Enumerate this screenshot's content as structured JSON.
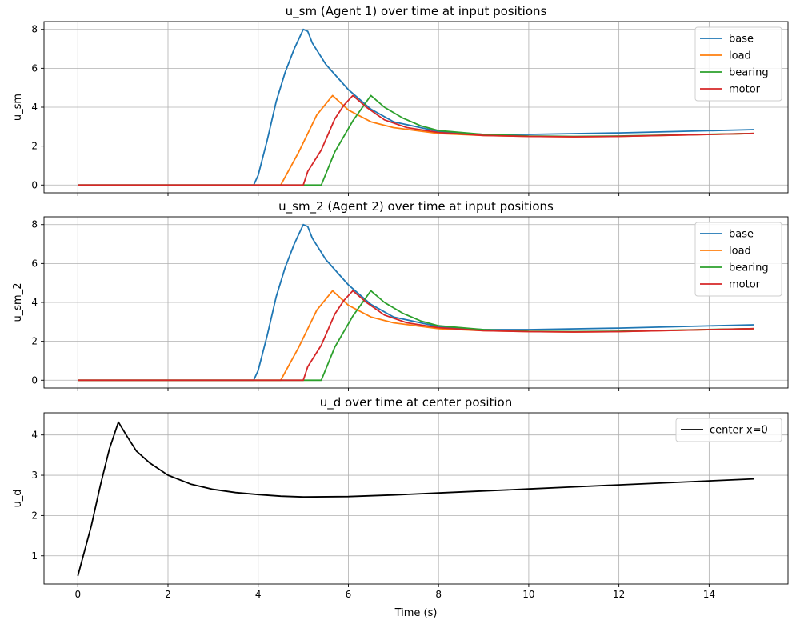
{
  "chart_data": [
    {
      "type": "line",
      "title": "u_sm (Agent 1) over time at input positions",
      "xlabel": "",
      "ylabel": "u_sm",
      "xlim": [
        -0.75,
        15.75
      ],
      "ylim": [
        -0.4,
        8.4
      ],
      "xticks": [
        0,
        2,
        4,
        6,
        8,
        10,
        12,
        14
      ],
      "yticks": [
        0,
        2,
        4,
        6,
        8
      ],
      "show_xtick_labels": false,
      "grid": true,
      "legend_position": "upper-right",
      "series": [
        {
          "name": "base",
          "color": "#1f77b4",
          "x": [
            0,
            3.9,
            4.0,
            4.2,
            4.4,
            4.6,
            4.8,
            5.0,
            5.1,
            5.2,
            5.5,
            6.0,
            6.5,
            7.0,
            8.0,
            9.0,
            10.0,
            12.0,
            15.0
          ],
          "y": [
            0,
            0,
            0.5,
            2.3,
            4.3,
            5.8,
            7.0,
            8.0,
            7.9,
            7.3,
            6.2,
            4.9,
            3.9,
            3.25,
            2.75,
            2.6,
            2.6,
            2.68,
            2.85
          ]
        },
        {
          "name": "load",
          "color": "#ff7f0e",
          "x": [
            0,
            4.5,
            4.9,
            5.3,
            5.65,
            6.0,
            6.5,
            7.0,
            8.0,
            9.0,
            10.0,
            11.0,
            12.0,
            15.0
          ],
          "y": [
            0,
            0,
            1.7,
            3.6,
            4.6,
            3.85,
            3.25,
            2.95,
            2.65,
            2.55,
            2.5,
            2.48,
            2.5,
            2.65
          ]
        },
        {
          "name": "bearing",
          "color": "#2ca02c",
          "x": [
            0,
            5.4,
            5.7,
            6.1,
            6.5,
            6.8,
            7.2,
            7.6,
            8.0,
            9.0,
            10.0,
            11.0,
            12.0,
            15.0
          ],
          "y": [
            0,
            0,
            1.7,
            3.3,
            4.6,
            4.0,
            3.45,
            3.05,
            2.8,
            2.6,
            2.52,
            2.5,
            2.52,
            2.65
          ]
        },
        {
          "name": "motor",
          "color": "#d62728",
          "x": [
            0,
            5.0,
            5.1,
            5.4,
            5.7,
            5.9,
            6.1,
            6.4,
            6.8,
            7.3,
            8.0,
            9.0,
            10.0,
            11.0,
            12.0,
            15.0
          ],
          "y": [
            0,
            0,
            0.7,
            1.8,
            3.4,
            4.1,
            4.6,
            4.0,
            3.35,
            2.95,
            2.7,
            2.55,
            2.5,
            2.48,
            2.5,
            2.65
          ]
        }
      ]
    },
    {
      "type": "line",
      "title": "u_sm_2 (Agent 2) over time at input positions",
      "xlabel": "",
      "ylabel": "u_sm_2",
      "xlim": [
        -0.75,
        15.75
      ],
      "ylim": [
        -0.4,
        8.4
      ],
      "xticks": [
        0,
        2,
        4,
        6,
        8,
        10,
        12,
        14
      ],
      "yticks": [
        0,
        2,
        4,
        6,
        8
      ],
      "show_xtick_labels": false,
      "grid": true,
      "legend_position": "upper-right",
      "series": [
        {
          "name": "base",
          "color": "#1f77b4",
          "x": [
            0,
            3.9,
            4.0,
            4.2,
            4.4,
            4.6,
            4.8,
            5.0,
            5.1,
            5.2,
            5.5,
            6.0,
            6.5,
            7.0,
            8.0,
            9.0,
            10.0,
            12.0,
            15.0
          ],
          "y": [
            0,
            0,
            0.5,
            2.3,
            4.3,
            5.8,
            7.0,
            8.0,
            7.9,
            7.3,
            6.2,
            4.9,
            3.9,
            3.25,
            2.75,
            2.6,
            2.6,
            2.68,
            2.85
          ]
        },
        {
          "name": "load",
          "color": "#ff7f0e",
          "x": [
            0,
            4.5,
            4.9,
            5.3,
            5.65,
            6.0,
            6.5,
            7.0,
            8.0,
            9.0,
            10.0,
            11.0,
            12.0,
            15.0
          ],
          "y": [
            0,
            0,
            1.7,
            3.6,
            4.6,
            3.85,
            3.25,
            2.95,
            2.65,
            2.55,
            2.5,
            2.48,
            2.5,
            2.65
          ]
        },
        {
          "name": "bearing",
          "color": "#2ca02c",
          "x": [
            0,
            5.4,
            5.7,
            6.1,
            6.5,
            6.8,
            7.2,
            7.6,
            8.0,
            9.0,
            10.0,
            11.0,
            12.0,
            15.0
          ],
          "y": [
            0,
            0,
            1.7,
            3.3,
            4.6,
            4.0,
            3.45,
            3.05,
            2.8,
            2.6,
            2.52,
            2.5,
            2.52,
            2.65
          ]
        },
        {
          "name": "motor",
          "color": "#d62728",
          "x": [
            0,
            5.0,
            5.1,
            5.4,
            5.7,
            5.9,
            6.1,
            6.4,
            6.8,
            7.3,
            8.0,
            9.0,
            10.0,
            11.0,
            12.0,
            15.0
          ],
          "y": [
            0,
            0,
            0.7,
            1.8,
            3.4,
            4.1,
            4.6,
            4.0,
            3.35,
            2.95,
            2.7,
            2.55,
            2.5,
            2.48,
            2.5,
            2.65
          ]
        }
      ]
    },
    {
      "type": "line",
      "title": "u_d over time at center position",
      "xlabel": "Time (s)",
      "ylabel": "u_d",
      "xlim": [
        -0.75,
        15.75
      ],
      "ylim": [
        0.3,
        4.55
      ],
      "xticks": [
        0,
        2,
        4,
        6,
        8,
        10,
        12,
        14
      ],
      "yticks": [
        1,
        2,
        3,
        4
      ],
      "show_xtick_labels": true,
      "grid": true,
      "legend_position": "upper-right",
      "series": [
        {
          "name": "center x=0",
          "color": "#000000",
          "x": [
            0,
            0.3,
            0.5,
            0.7,
            0.9,
            1.1,
            1.3,
            1.6,
            2.0,
            2.5,
            3.0,
            3.5,
            4.0,
            4.5,
            5.0,
            6.0,
            7.0,
            8.0,
            9.0,
            10.0,
            11.0,
            12.0,
            13.0,
            14.0,
            15.0
          ],
          "y": [
            0.5,
            1.75,
            2.75,
            3.65,
            4.32,
            3.95,
            3.6,
            3.3,
            3.0,
            2.78,
            2.65,
            2.57,
            2.52,
            2.48,
            2.46,
            2.47,
            2.51,
            2.56,
            2.61,
            2.66,
            2.71,
            2.76,
            2.81,
            2.86,
            2.91
          ]
        }
      ]
    }
  ]
}
